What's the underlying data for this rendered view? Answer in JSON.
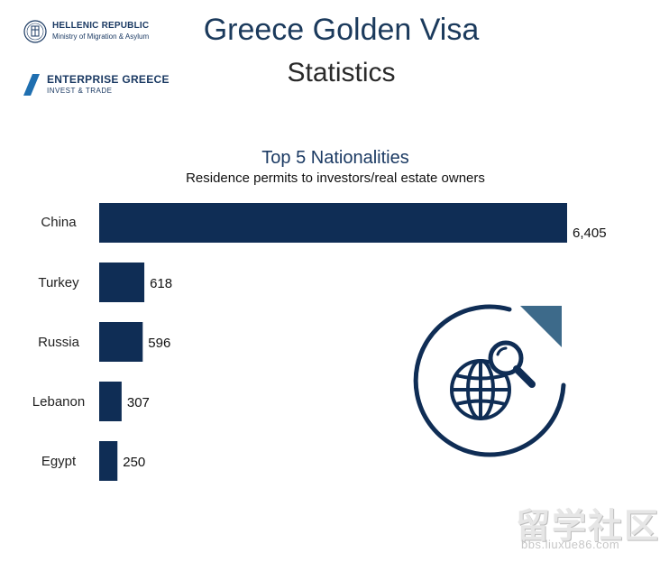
{
  "header": {
    "org1_title": "HELLENIC REPUBLIC",
    "org1_subtitle": "Ministry of Migration & Asylum",
    "org2_title": "ENTERPRISE GREECE",
    "org2_subtitle": "INVEST & TRADE",
    "title": "Greece Golden Visa",
    "subtitle": "Statistics"
  },
  "chart_data": {
    "type": "bar",
    "orientation": "horizontal",
    "title": "Top 5 Nationalities",
    "subtitle": "Residence permits to investors/real estate owners",
    "categories": [
      "China",
      "Turkey",
      "Russia",
      "Lebanon",
      "Egypt"
    ],
    "values": [
      6405,
      618,
      596,
      307,
      250
    ],
    "value_labels": [
      "6,405",
      "618",
      "596",
      "307",
      "250"
    ],
    "xlim": [
      0,
      6405
    ],
    "grid": false,
    "legend": "none",
    "bar_color": "#0f2d55"
  },
  "icon": {
    "name": "globe-search-icon",
    "color": "#0f2d55",
    "accent": "#3d6a8a"
  },
  "watermark": {
    "text": "留学社区",
    "url": "bbs.liuxue86.com"
  }
}
